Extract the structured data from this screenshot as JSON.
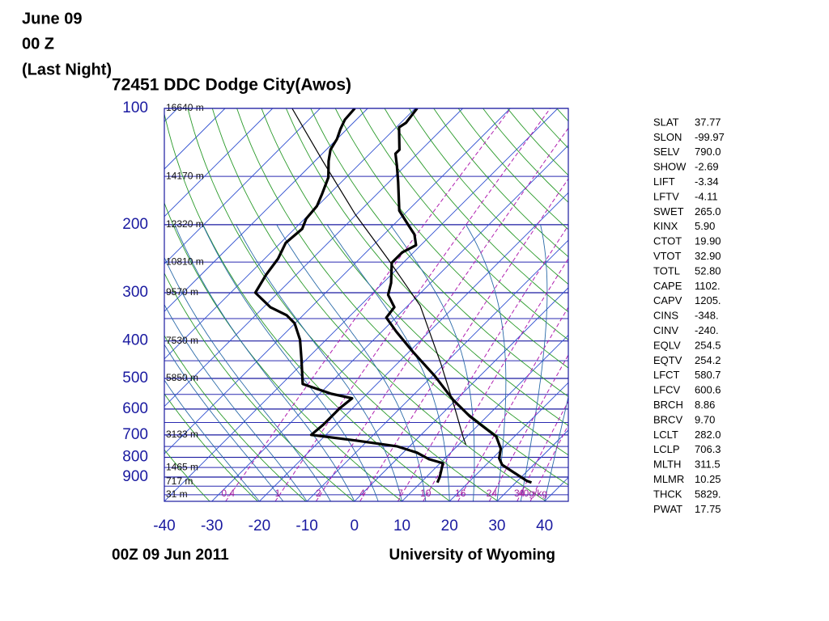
{
  "slide_title": [
    "June 09",
    "00 Z",
    "(Last Night)"
  ],
  "chart_data": {
    "type": "skewt",
    "title": "72451 DDC Dodge City(Awos)",
    "footer_left": "00Z 09 Jun 2011",
    "footer_right": "University of Wyoming",
    "xlim": [
      -40,
      45
    ],
    "xticks": [
      -40,
      -30,
      -20,
      -10,
      0,
      10,
      20,
      30,
      40
    ],
    "ylim": [
      1040,
      100
    ],
    "ylog": true,
    "yticks": [
      100,
      200,
      300,
      400,
      500,
      600,
      700,
      800,
      900
    ],
    "yticks_minor": [
      150,
      250,
      350,
      450,
      550,
      650,
      750,
      850,
      950,
      1000
    ],
    "skew_degrees": 45,
    "heights": [
      {
        "value": 100,
        "label": "16640 m"
      },
      {
        "value": 150,
        "label": "14170 m"
      },
      {
        "value": 200,
        "label": "12320 m"
      },
      {
        "value": 250,
        "label": "10810 m"
      },
      {
        "value": 300,
        "label": "9570 m"
      },
      {
        "value": 400,
        "label": "7530 m"
      },
      {
        "value": 500,
        "label": "5850 m"
      },
      {
        "value": 700,
        "label": "3133 m"
      },
      {
        "value": 850,
        "label": "1465 m"
      },
      {
        "value": 925,
        "label": "717 m"
      },
      {
        "value": 1000,
        "label": "31 m"
      }
    ],
    "mixing_ratios": [
      {
        "value": 0.4,
        "label": "0.4"
      },
      {
        "value": 1,
        "label": "1"
      },
      {
        "value": 2,
        "label": "2"
      },
      {
        "value": 4,
        "label": "4"
      },
      {
        "value": 7,
        "label": "7"
      },
      {
        "value": 10,
        "label": "10"
      },
      {
        "value": 16,
        "label": "16"
      },
      {
        "value": 24,
        "label": "24"
      },
      {
        "value": 34,
        "label": "34"
      },
      {
        "value": 40,
        "label": "40g/kg"
      }
    ],
    "series": [
      {
        "color": "#000000",
        "line_width": 3.2,
        "pressure": [
          100,
          109,
          112,
          128,
          131,
          141,
          155,
          184,
          200,
          212,
          226,
          236,
          251,
          283,
          304,
          327,
          348,
          378,
          426,
          492,
          569,
          626,
          674,
          707,
          760,
          805,
          837,
          878,
          921,
          930
        ],
        "values": [
          -69.6,
          -68.9,
          -69.4,
          -64.6,
          -64.6,
          -61.7,
          -58.1,
          -51.8,
          -47.0,
          -43.6,
          -41.0,
          -42.4,
          -42.4,
          -38.3,
          -36.4,
          -32.5,
          -32.0,
          -27.0,
          -19.3,
          -9.6,
          -0.5,
          6.3,
          12.3,
          16.2,
          19.7,
          21.4,
          23.4,
          27.7,
          32.0,
          33.3
        ]
      },
      {
        "color": "#000000",
        "line_width": 3.2,
        "pressure": [
          100,
          107,
          113,
          120,
          128,
          137,
          151,
          167,
          179,
          193,
          205,
          223,
          245,
          270,
          300,
          327,
          343,
          360,
          397,
          447,
          517,
          548,
          563,
          597,
          658,
          700,
          724,
          749,
          778,
          809,
          829,
          899,
          930
        ],
        "values": [
          -82.7,
          -82.4,
          -81.4,
          -80.0,
          -79.1,
          -77.1,
          -73.7,
          -71.5,
          -70.1,
          -69.7,
          -68.4,
          -68.9,
          -67.2,
          -66.3,
          -64.8,
          -58.6,
          -53.5,
          -50.1,
          -45.5,
          -41.0,
          -35.6,
          -27.5,
          -22.2,
          -22.7,
          -22.7,
          -23.1,
          -12.5,
          -2.7,
          2.9,
          6.8,
          10.6,
          12.8,
          13.5
        ]
      },
      {
        "color": "#000000",
        "line_width": 1.2,
        "pressure": [
          100,
          137,
          188,
          245,
          324,
          458,
          597,
          707,
          742
        ],
        "values": [
          -95.9,
          -78.3,
          -60.3,
          -44.1,
          -27.4,
          -10.8,
          1.5,
          9.2,
          11.5
        ]
      }
    ],
    "indices": [
      {
        "name": "SLAT",
        "value": "37.77"
      },
      {
        "name": "SLON",
        "value": "-99.97"
      },
      {
        "name": "SELV",
        "value": "790.0"
      },
      {
        "name": "SHOW",
        "value": "-2.69"
      },
      {
        "name": "LIFT",
        "value": "-3.34"
      },
      {
        "name": "LFTV",
        "value": "-4.11"
      },
      {
        "name": "SWET",
        "value": "265.0"
      },
      {
        "name": "KINX",
        "value": "5.90"
      },
      {
        "name": "CTOT",
        "value": "19.90"
      },
      {
        "name": "VTOT",
        "value": "32.90"
      },
      {
        "name": "TOTL",
        "value": "52.80"
      },
      {
        "name": "CAPE",
        "value": "1102."
      },
      {
        "name": "CAPV",
        "value": "1205."
      },
      {
        "name": "CINS",
        "value": "-348."
      },
      {
        "name": "CINV",
        "value": "-240."
      },
      {
        "name": "EQLV",
        "value": "254.5"
      },
      {
        "name": "EQTV",
        "value": "254.2"
      },
      {
        "name": "LFCT",
        "value": "580.7"
      },
      {
        "name": "LFCV",
        "value": "600.6"
      },
      {
        "name": "BRCH",
        "value": "8.86"
      },
      {
        "name": "BRCV",
        "value": "9.70"
      },
      {
        "name": "LCLT",
        "value": "282.0"
      },
      {
        "name": "LCLP",
        "value": "706.3"
      },
      {
        "name": "MLTH",
        "value": "311.5"
      },
      {
        "name": "MLMR",
        "value": "10.25"
      },
      {
        "name": "THCK",
        "value": "5829."
      },
      {
        "name": "PWAT",
        "value": "17.75"
      }
    ]
  }
}
